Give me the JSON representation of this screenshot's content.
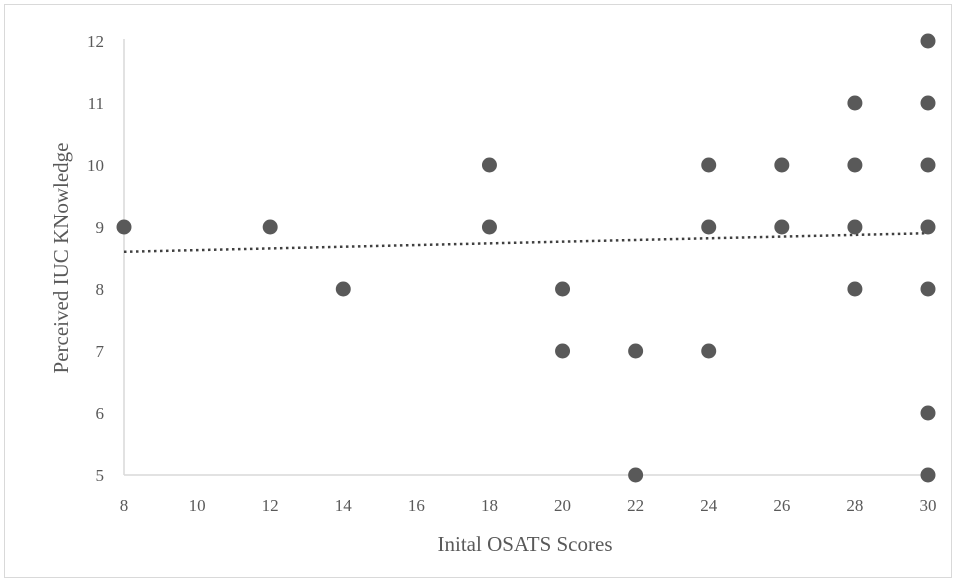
{
  "chart_data": {
    "type": "scatter",
    "title": "",
    "xlabel": "Inital OSATS Scores",
    "ylabel": "Perceived IUC KNowledge",
    "xlim": [
      8,
      30
    ],
    "ylim": [
      5,
      12
    ],
    "xticks": [
      8,
      10,
      12,
      14,
      16,
      18,
      20,
      22,
      24,
      26,
      28,
      30
    ],
    "yticks": [
      5,
      6,
      7,
      8,
      9,
      10,
      11,
      12
    ],
    "grid": false,
    "legend": "none",
    "marker_color": "#595959",
    "trendline": {
      "type": "linear",
      "style": "dotted",
      "color": "#404040",
      "x": [
        8,
        30
      ],
      "y": [
        8.6,
        8.9
      ]
    },
    "points": [
      {
        "x": 8,
        "y": 9
      },
      {
        "x": 12,
        "y": 9
      },
      {
        "x": 14,
        "y": 8
      },
      {
        "x": 18,
        "y": 10
      },
      {
        "x": 18,
        "y": 9
      },
      {
        "x": 20,
        "y": 8
      },
      {
        "x": 20,
        "y": 7
      },
      {
        "x": 22,
        "y": 7
      },
      {
        "x": 22,
        "y": 5
      },
      {
        "x": 24,
        "y": 10
      },
      {
        "x": 24,
        "y": 9
      },
      {
        "x": 24,
        "y": 7
      },
      {
        "x": 26,
        "y": 10
      },
      {
        "x": 26,
        "y": 9
      },
      {
        "x": 28,
        "y": 11
      },
      {
        "x": 28,
        "y": 10
      },
      {
        "x": 28,
        "y": 9
      },
      {
        "x": 28,
        "y": 8
      },
      {
        "x": 30,
        "y": 12
      },
      {
        "x": 30,
        "y": 11
      },
      {
        "x": 30,
        "y": 10
      },
      {
        "x": 30,
        "y": 9
      },
      {
        "x": 30,
        "y": 8
      },
      {
        "x": 30,
        "y": 6
      },
      {
        "x": 30,
        "y": 5
      }
    ]
  }
}
